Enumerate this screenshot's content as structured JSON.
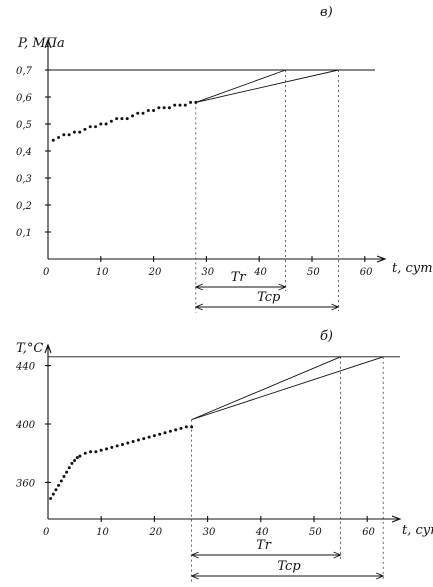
{
  "chart_data": [
    {
      "type": "scatter",
      "panel_letter": "в)",
      "xlabel": "t, сут",
      "ylabel": "P, МПа",
      "xlim": [
        0,
        65
      ],
      "ylim": [
        0,
        0.75
      ],
      "x_ticks": [
        "0",
        "10",
        "20",
        "30",
        "40",
        "50",
        "60"
      ],
      "y_ticks": [
        "0,1",
        "0,2",
        "0,3",
        "0,4",
        "0,5",
        "0,6",
        "0,7"
      ],
      "reference_level": 0.7,
      "series": [
        {
          "x": [
            1,
            2,
            3,
            4,
            5,
            6,
            7,
            8,
            9,
            10,
            11,
            12,
            13,
            14,
            15,
            16,
            17,
            18,
            19,
            20,
            21,
            22,
            23,
            24,
            25,
            26,
            27,
            28
          ],
          "y": [
            0.44,
            0.45,
            0.46,
            0.46,
            0.47,
            0.47,
            0.48,
            0.49,
            0.49,
            0.5,
            0.5,
            0.51,
            0.52,
            0.52,
            0.52,
            0.53,
            0.54,
            0.54,
            0.55,
            0.55,
            0.56,
            0.56,
            0.56,
            0.57,
            0.57,
            0.57,
            0.58,
            0.58
          ]
        }
      ],
      "lines": [
        {
          "x": [
            28,
            45
          ],
          "y": [
            0.58,
            0.7
          ]
        },
        {
          "x": [
            28,
            55
          ],
          "y": [
            0.58,
            0.7
          ]
        }
      ],
      "annotations": [
        {
          "text": "Tr",
          "from": 28,
          "to": 45
        },
        {
          "text": "Tcp",
          "from": 28,
          "to": 55
        }
      ]
    },
    {
      "type": "scatter",
      "panel_letter": "б)",
      "xlabel": "t, сут",
      "ylabel": "T,°C",
      "xlim": [
        0,
        65
      ],
      "ylim": [
        340,
        450
      ],
      "x_ticks": [
        "0",
        "10",
        "20",
        "30",
        "40",
        "50",
        "60"
      ],
      "y_ticks": [
        "360",
        "400",
        "440"
      ],
      "reference_level": 446,
      "series": [
        {
          "x": [
            0.5,
            1,
            1.5,
            2,
            2.5,
            3,
            3.5,
            4,
            4.5,
            5,
            5.5,
            6,
            7,
            8,
            9,
            10,
            11,
            12,
            13,
            14,
            15,
            16,
            17,
            18,
            19,
            20,
            21,
            22,
            23,
            24,
            25,
            26,
            27
          ],
          "y": [
            349,
            352,
            355,
            358,
            361,
            364,
            367,
            370,
            373,
            375,
            377,
            378,
            380,
            381,
            381,
            382,
            383,
            384,
            385,
            386,
            387,
            388,
            389,
            390,
            391,
            392,
            393,
            394,
            395,
            396,
            397,
            398,
            398
          ]
        }
      ],
      "lines": [
        {
          "x": [
            27,
            55
          ],
          "y": [
            403,
            446
          ]
        },
        {
          "x": [
            27,
            63
          ],
          "y": [
            403,
            446
          ]
        }
      ],
      "annotations": [
        {
          "text": "Tr",
          "from": 27,
          "to": 55
        },
        {
          "text": "Tcp",
          "from": 27,
          "to": 63
        }
      ]
    }
  ]
}
